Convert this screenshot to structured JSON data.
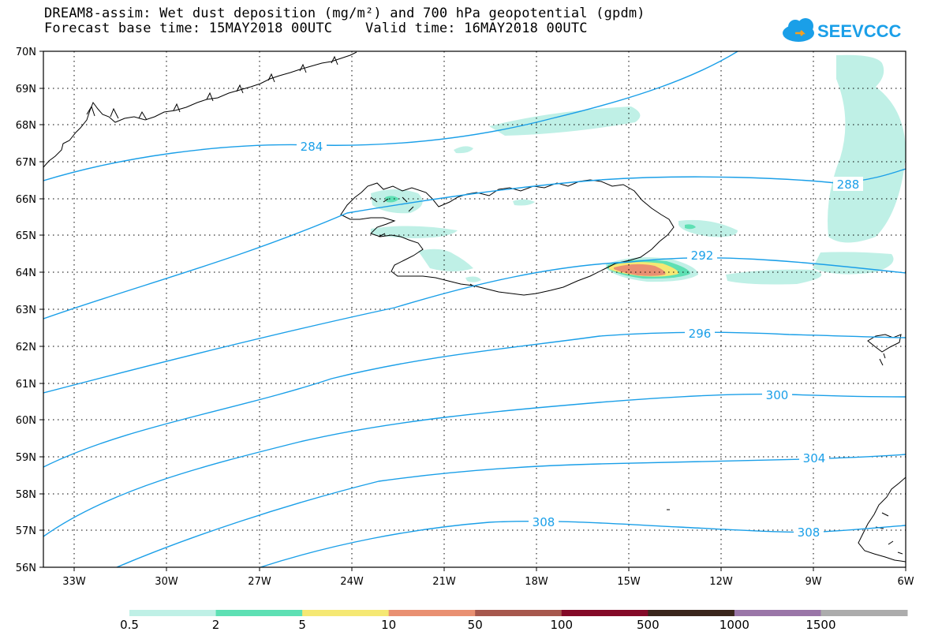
{
  "title_line1": "DREAM8-assim: Wet dust deposition (mg/m²) and 700 hPa geopotential (gpdm)",
  "title_line2": "Forecast base time: 15MAY2018 00UTC    Valid time: 16MAY2018 00UTC",
  "logo_text": "SEEVCCC",
  "lat_labels": [
    "70N",
    "69N",
    "68N",
    "67N",
    "66N",
    "65N",
    "64N",
    "63N",
    "62N",
    "61N",
    "60N",
    "59N",
    "58N",
    "57N",
    "56N"
  ],
  "lon_labels": [
    "33W",
    "30W",
    "27W",
    "24W",
    "21W",
    "18W",
    "15W",
    "12W",
    "9W",
    "6W"
  ],
  "contour_labels": [
    "284",
    "288",
    "292",
    "296",
    "300",
    "304",
    "308",
    "308"
  ],
  "colorbar": {
    "labels": [
      "0.5",
      "2",
      "5",
      "10",
      "50",
      "100",
      "500",
      "1000",
      "1500"
    ],
    "colors": [
      "#bff0e6",
      "#5ee0b4",
      "#f5e873",
      "#e99072",
      "#a7584d",
      "#840a28",
      "#3a261c",
      "#9a76a8",
      "#acacac"
    ]
  },
  "contour_color": "#1a9fe8"
}
